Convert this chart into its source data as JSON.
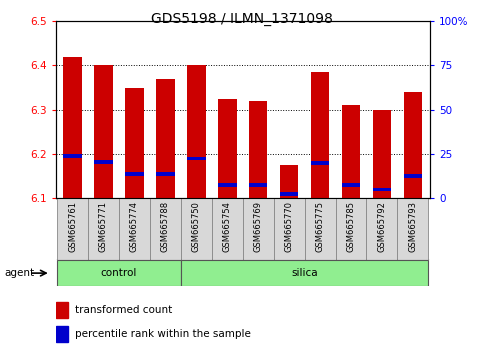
{
  "title": "GDS5198 / ILMN_1371098",
  "samples": [
    "GSM665761",
    "GSM665771",
    "GSM665774",
    "GSM665788",
    "GSM665750",
    "GSM665754",
    "GSM665769",
    "GSM665770",
    "GSM665775",
    "GSM665785",
    "GSM665792",
    "GSM665793"
  ],
  "red_values": [
    6.42,
    6.4,
    6.35,
    6.37,
    6.4,
    6.325,
    6.32,
    6.175,
    6.385,
    6.31,
    6.3,
    6.34
  ],
  "blue_values": [
    6.195,
    6.182,
    6.155,
    6.155,
    6.19,
    6.13,
    6.13,
    6.11,
    6.18,
    6.13,
    6.12,
    6.15
  ],
  "ymin": 6.1,
  "ymax": 6.5,
  "y_ticks_left": [
    6.1,
    6.2,
    6.3,
    6.4,
    6.5
  ],
  "y_ticks_right": [
    0,
    25,
    50,
    75,
    100
  ],
  "control_samples": 4,
  "silica_samples": 8,
  "control_label": "control",
  "silica_label": "silica",
  "agent_label": "agent",
  "legend_red": "transformed count",
  "legend_blue": "percentile rank within the sample",
  "bar_color": "#cc0000",
  "blue_color": "#0000cc",
  "bar_width": 0.6,
  "title_fontsize": 10,
  "tick_fontsize": 7.5,
  "label_fontsize": 7
}
